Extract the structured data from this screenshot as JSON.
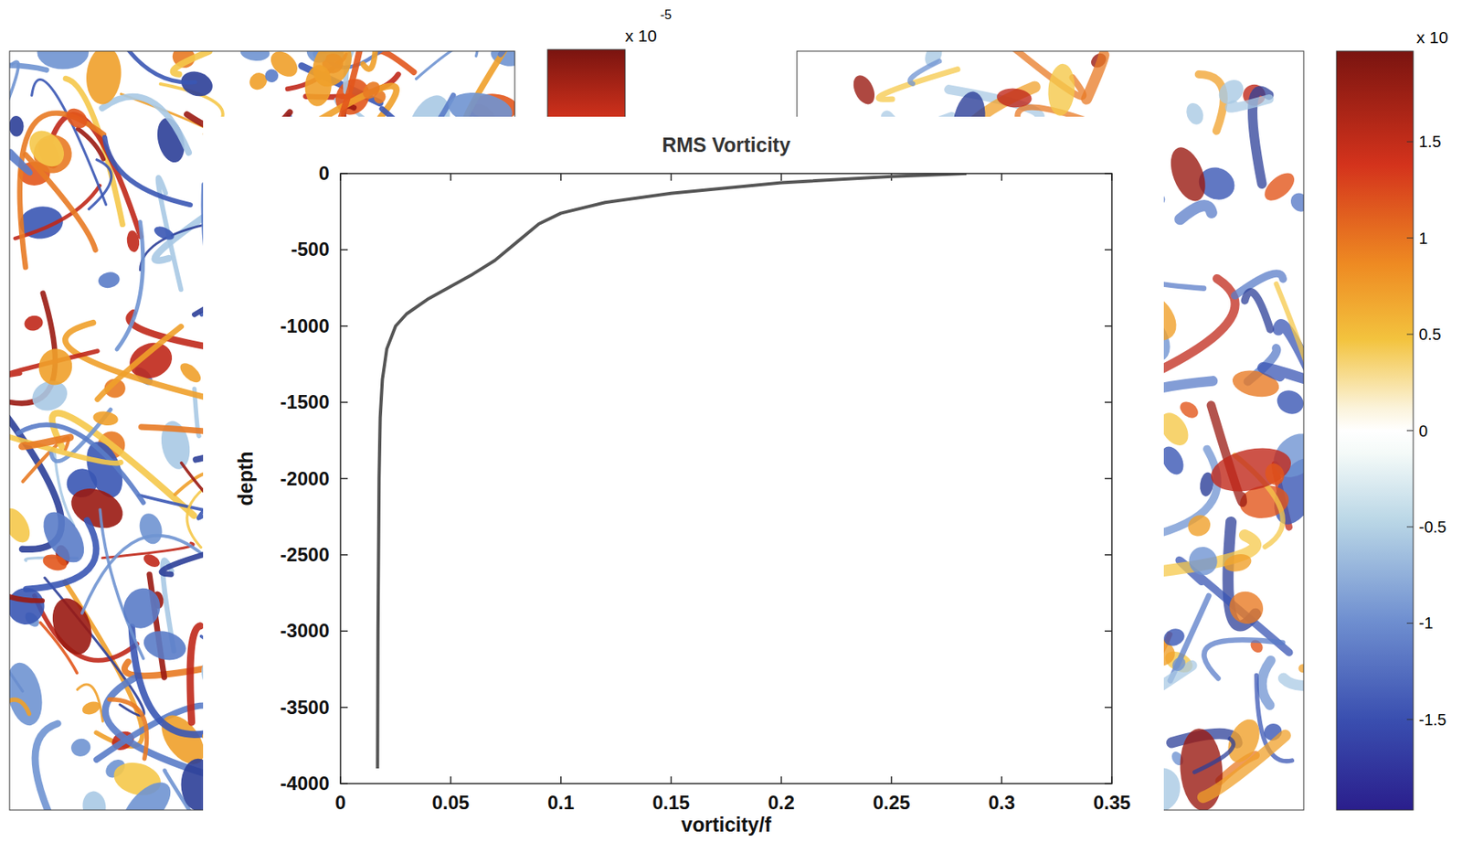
{
  "chart_data": {
    "type": "line",
    "title": "RMS Vorticity",
    "x_label": "vorticity/f",
    "y_label": "depth",
    "x": [
      0.284,
      0.25,
      0.2,
      0.15,
      0.12,
      0.1,
      0.09,
      0.08,
      0.07,
      0.06,
      0.05,
      0.04,
      0.03,
      0.025,
      0.021,
      0.019,
      0.018,
      0.0175,
      0.017,
      0.0168
    ],
    "values": [
      0,
      -20,
      -60,
      -130,
      -190,
      -260,
      -330,
      -450,
      -570,
      -660,
      -740,
      -820,
      -920,
      -1000,
      -1150,
      -1350,
      -1600,
      -2000,
      -3000,
      -3900
    ],
    "color": "#555555",
    "xlim": [
      0,
      0.35
    ],
    "xticks": [
      0,
      0.05,
      0.1,
      0.15,
      0.2,
      0.25,
      0.3,
      0.35
    ],
    "ylim": [
      -4000,
      0
    ],
    "yticks": [
      -4000,
      -3500,
      -3000,
      -2500,
      -2000,
      -1500,
      -1000,
      -500,
      0
    ],
    "grid": false,
    "colorbars": [
      {
        "title": "x 10",
        "exponent": "-5"
      },
      {
        "title": "x 10",
        "lim": [
          -1.97,
          1.97
        ],
        "ticks": [
          -1.5,
          -1,
          -0.5,
          0,
          0.5,
          1,
          1.5
        ]
      }
    ]
  }
}
